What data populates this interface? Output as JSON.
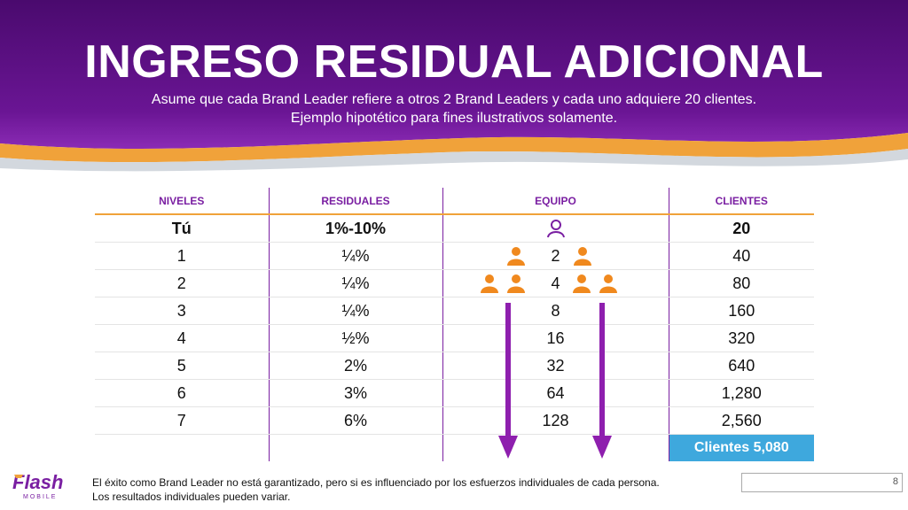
{
  "slide": {
    "title": "INGRESO RESIDUAL ADICIONAL",
    "subtitle_line1": "Asume que cada Brand Leader refiere a otros 2 Brand Leaders y cada uno adquiere 20 clientes.",
    "subtitle_line2": "Ejemplo hipotético para fines ilustrativos solamente.",
    "page_number": "8"
  },
  "colors": {
    "purple_dark": "#4a0a6e",
    "purple": "#7a1fa2",
    "orange": "#f0a23a",
    "blue": "#3ea8dd",
    "person_orange": "#f0891e"
  },
  "table": {
    "headers": [
      "NIVELES",
      "RESIDUALES",
      "EQUIPO",
      "CLIENTES"
    ],
    "rows": [
      {
        "nivel": "Tú",
        "residual": "1%-10%",
        "equipo": "",
        "clientes": "20"
      },
      {
        "nivel": "1",
        "residual": "¼%",
        "equipo": "2",
        "clientes": "40"
      },
      {
        "nivel": "2",
        "residual": "¼%",
        "equipo": "4",
        "clientes": "80"
      },
      {
        "nivel": "3",
        "residual": "¼%",
        "equipo": "8",
        "clientes": "160"
      },
      {
        "nivel": "4",
        "residual": "½%",
        "equipo": "16",
        "clientes": "320"
      },
      {
        "nivel": "5",
        "residual": "2%",
        "equipo": "32",
        "clientes": "640"
      },
      {
        "nivel": "6",
        "residual": "3%",
        "equipo": "64",
        "clientes": "1,280"
      },
      {
        "nivel": "7",
        "residual": "6%",
        "equipo": "128",
        "clientes": "2,560"
      }
    ],
    "total": "Clientes 5,080"
  },
  "icons": {
    "you": "person-outline-icon",
    "member": "person-icon",
    "arrow": "down-arrow-icon"
  },
  "logo": {
    "word": "Flash",
    "tagline": "MOBILE"
  },
  "footer": {
    "line1": "El éxito como Brand Leader no está garantizado, pero si es influenciado por los esfuerzos individuales  de cada persona.",
    "line2": "Los resultados individuales pueden variar."
  }
}
